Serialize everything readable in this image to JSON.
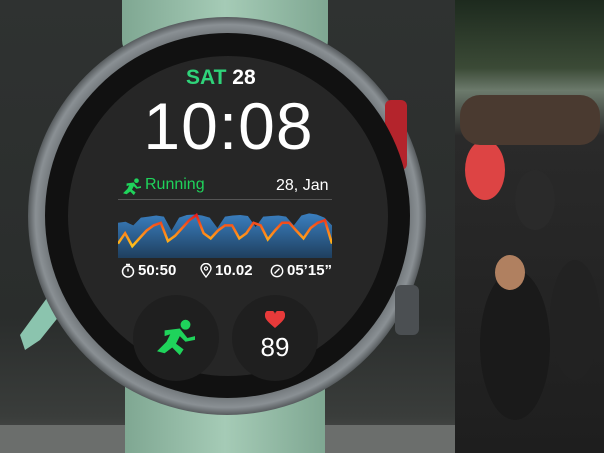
{
  "watch_face": {
    "day": "SAT",
    "date_num": "28",
    "time": "10:08",
    "activity": {
      "icon": "running-icon",
      "label": "Running",
      "date": "28, Jan"
    },
    "graph": {
      "area_values": [
        60,
        62,
        55,
        70,
        72,
        74,
        72,
        45,
        70,
        75,
        76,
        74,
        70,
        50,
        72,
        74,
        75,
        73,
        52,
        72,
        73,
        74,
        72,
        55,
        74,
        78,
        76,
        70,
        55
      ],
      "line_values": [
        20,
        40,
        15,
        30,
        45,
        55,
        60,
        25,
        35,
        50,
        65,
        75,
        40,
        30,
        45,
        55,
        55,
        30,
        40,
        60,
        55,
        28,
        45,
        60,
        60,
        45,
        30,
        50,
        60,
        65,
        20
      ],
      "area_color": "#3a7fc0",
      "line_colors": [
        "#ffc21a",
        "#ff7a1a",
        "#e81c1c"
      ]
    },
    "stats": [
      {
        "icon": "stopwatch-icon",
        "value": "50:50"
      },
      {
        "icon": "location-pin-icon",
        "value": "10.02"
      },
      {
        "icon": "pace-gauge-icon",
        "value": "05’15”"
      }
    ],
    "complications": [
      {
        "icon": "running-icon",
        "color": "#1fd35b"
      },
      {
        "icon": "heart-icon",
        "value": "89",
        "color": "#e83a3a"
      }
    ]
  }
}
